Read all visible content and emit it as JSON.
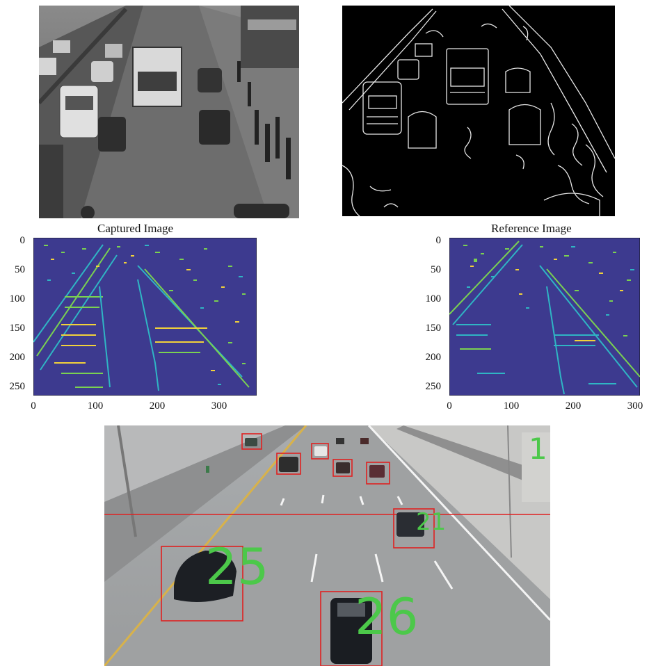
{
  "panels": {
    "grayscale_photo": {
      "subject": "grayscale traffic street scene"
    },
    "edge_map": {
      "subject": "Canny-style edge map of traffic scene"
    },
    "captured_plot": {
      "title": "Captured Image",
      "yticks": [
        "0",
        "50",
        "100",
        "150",
        "200",
        "250"
      ],
      "xticks": [
        "0",
        "100",
        "200",
        "300"
      ],
      "colors": {
        "background": "#3d3a8f",
        "edge_green": "#7ad151",
        "edge_cyan": "#2fb5c4",
        "edge_yellow": "#f2d23a"
      }
    },
    "reference_plot": {
      "title": "Reference Image",
      "yticks": [
        "0",
        "50",
        "100",
        "150",
        "200",
        "250"
      ],
      "xticks": [
        "0",
        "100",
        "200",
        "300"
      ]
    },
    "highway_detection": {
      "labels": [
        "1",
        "21",
        "25",
        "26"
      ],
      "colors": {
        "box": "#e02020",
        "label": "#4cc84a",
        "line": "#e02020"
      }
    }
  }
}
